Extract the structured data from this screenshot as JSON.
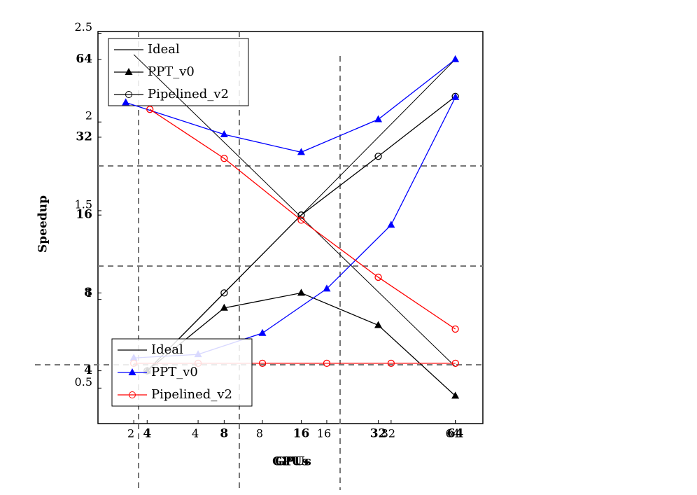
{
  "chart_data": [
    {
      "type": "line",
      "xlabel": "GPUs",
      "ylabel": "Speedup",
      "xscale": "log",
      "yscale": "log",
      "xlim": [
        2.57,
        82
      ],
      "ylim": [
        2.5,
        82
      ],
      "xticks": [
        4,
        8,
        16,
        32,
        64
      ],
      "yticks": [
        4,
        8,
        16,
        32,
        64
      ],
      "bold_ticks": true,
      "legend": "upper left",
      "series": [
        {
          "name": "Ideal",
          "color": "#000000",
          "marker": "none",
          "x": [
            4,
            64
          ],
          "values": [
            4,
            64
          ]
        },
        {
          "name": "PPT_v0",
          "color": "#000000",
          "marker": "triangle",
          "x": [
            4,
            8,
            16,
            32,
            64
          ],
          "values": [
            4,
            7,
            8,
            6,
            3.2
          ]
        },
        {
          "name": "Pipelined_v2",
          "color": "#000000",
          "marker": "circle",
          "x": [
            4,
            8,
            16,
            32,
            64
          ],
          "values": [
            4,
            8,
            16,
            27,
            46
          ]
        }
      ]
    },
    {
      "type": "line",
      "xlabel": "GPUs",
      "xscale": "log",
      "yscale": "linear",
      "xlim": [
        1.36,
        86
      ],
      "ylim": [
        0.3,
        2.51
      ],
      "xticks": [
        2,
        4,
        8,
        16,
        32,
        64
      ],
      "yticks": [
        0.5,
        1,
        1.5,
        2,
        2.5
      ],
      "bold_ticks": false,
      "legend": "lower left",
      "series": [
        {
          "name": "Ideal",
          "color": "#000000",
          "marker": "none",
          "x": [
            2,
            64
          ],
          "values": [
            2.38,
            0.62
          ]
        },
        {
          "name": "PPT_v0",
          "color": "#0000ff",
          "marker": "triangle",
          "x": [
            2,
            4,
            8,
            16,
            32,
            64
          ],
          "values": [
            0.67,
            0.69,
            0.81,
            1.06,
            1.42,
            2.14
          ]
        },
        {
          "name": "Pipelined_v2",
          "color": "#ff0000",
          "marker": "circle",
          "x": [
            2,
            4,
            8,
            16,
            32,
            64
          ],
          "values": [
            0.64,
            0.64,
            0.64,
            0.64,
            0.64,
            0.64
          ]
        }
      ]
    },
    {
      "type": "line",
      "xscale": "log",
      "yscale": "log",
      "xlim": [
        2.57,
        82
      ],
      "ylim": [
        2.5,
        82
      ],
      "legend": "none",
      "series": [
        {
          "name": "PPT_v0",
          "color": "#0000ff",
          "marker": "triangle",
          "x": [
            3.3,
            8,
            16,
            32,
            64
          ],
          "values": [
            43.6,
            32.8,
            28,
            37.5,
            64
          ]
        },
        {
          "name": "Pipelined_v2",
          "color": "#ff0000",
          "marker": "circle",
          "x": [
            4.1,
            8,
            16,
            32,
            64
          ],
          "values": [
            41,
            26.5,
            15.3,
            9.2,
            5.8
          ]
        }
      ]
    }
  ]
}
